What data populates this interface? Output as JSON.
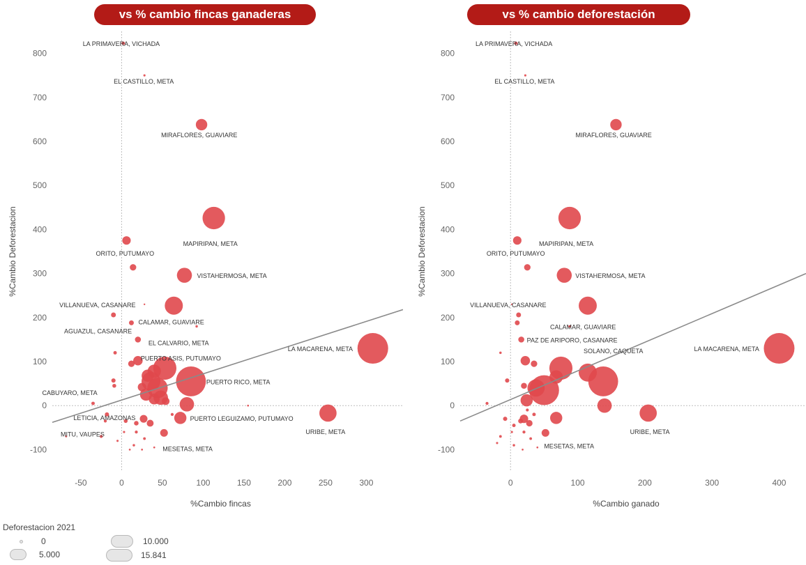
{
  "panels": {
    "left_title": "vs % cambio fincas ganaderas",
    "right_title": "vs % cambio deforestación"
  },
  "legend": {
    "title": "Deforestacion 2021",
    "entries": [
      {
        "label": "0",
        "value": 0
      },
      {
        "label": "5.000",
        "value": 5000
      },
      {
        "label": "10.000",
        "value": 10000
      },
      {
        "label": "15.841",
        "value": 15841
      }
    ]
  },
  "colors": {
    "marker": "#e0484d",
    "title_bg": "#b31b17",
    "trend": "#8a8a8a",
    "zero_line": "#bdbdbd"
  },
  "chart_data": [
    {
      "type": "scatter",
      "xlabel": "%Cambio fincas",
      "ylabel": "%Cambio Deforestacion",
      "xlim": [
        -85,
        345
      ],
      "ylim": [
        -150,
        850
      ],
      "xticks": [
        -50,
        0,
        50,
        100,
        150,
        200,
        250,
        300
      ],
      "yticks": [
        -100,
        0,
        100,
        200,
        300,
        400,
        500,
        600,
        700,
        800
      ],
      "trendline": [
        [
          -85,
          -38
        ],
        [
          345,
          218
        ]
      ],
      "points": [
        {
          "x": 2,
          "y": 823,
          "size": 200,
          "label": "LA PRIMAVERA, VICHADA"
        },
        {
          "x": 28,
          "y": 750,
          "size": 80,
          "label": "EL CASTILLO, META"
        },
        {
          "x": 98,
          "y": 638,
          "size": 2200,
          "label": "MIRAFLORES, GUAVIARE"
        },
        {
          "x": 113,
          "y": 426,
          "size": 8500,
          "label": "MAPIRIPAN, META"
        },
        {
          "x": 6,
          "y": 375,
          "size": 1200,
          "label": "ORITO, PUTUMAYO"
        },
        {
          "x": 14,
          "y": 314,
          "size": 700
        },
        {
          "x": 77,
          "y": 296,
          "size": 3800,
          "label": "VISTAHERMOSA, META"
        },
        {
          "x": 28,
          "y": 230,
          "size": 40,
          "label": "VILLANUEVA, CASANARE"
        },
        {
          "x": 64,
          "y": 227,
          "size": 5500
        },
        {
          "x": -10,
          "y": 206,
          "size": 400
        },
        {
          "x": 12,
          "y": 188,
          "size": 400,
          "label": "CALAMAR, GUAVIARE"
        },
        {
          "x": 92,
          "y": 180,
          "size": 100,
          "label": "AGUAZUL, CASANARE"
        },
        {
          "x": 20,
          "y": 150,
          "size": 600,
          "label": "EL CALVARIO, META"
        },
        {
          "x": 308,
          "y": 130,
          "size": 15841,
          "label": "LA MACARENA, META"
        },
        {
          "x": -8,
          "y": 120,
          "size": 200
        },
        {
          "x": 20,
          "y": 102,
          "size": 1500,
          "label": "PUERTO ASIS, PUTUMAYO"
        },
        {
          "x": 12,
          "y": 95,
          "size": 700
        },
        {
          "x": 53,
          "y": 85,
          "size": 9000
        },
        {
          "x": 40,
          "y": 78,
          "size": 3000
        },
        {
          "x": 32,
          "y": 68,
          "size": 2500
        },
        {
          "x": 85,
          "y": 55,
          "size": 15000,
          "label": "PUERTO RICO, META"
        },
        {
          "x": 36,
          "y": 55,
          "size": 6000
        },
        {
          "x": -10,
          "y": 57,
          "size": 300
        },
        {
          "x": -9,
          "y": 45,
          "size": 250
        },
        {
          "x": 44,
          "y": 40,
          "size": 7000
        },
        {
          "x": 25,
          "y": 42,
          "size": 1200
        },
        {
          "x": 30,
          "y": 25,
          "size": 2500
        },
        {
          "x": 48,
          "y": 18,
          "size": 3500
        },
        {
          "x": 40,
          "y": 15,
          "size": 2000
        },
        {
          "x": 54,
          "y": 10,
          "size": 1000
        },
        {
          "x": -35,
          "y": 5,
          "size": 200,
          "label": "CABUYARO, META"
        },
        {
          "x": 80,
          "y": 3,
          "size": 3500
        },
        {
          "x": 155,
          "y": 0,
          "size": 60
        },
        {
          "x": 253,
          "y": -17,
          "size": 5000,
          "label": "URIBE, META"
        },
        {
          "x": -18,
          "y": -20,
          "size": 300,
          "label": "LETICIA, AMAZONAS"
        },
        {
          "x": 72,
          "y": -28,
          "size": 2500,
          "label": "PUERTO LEGUIZAMO, PUTUMAYO"
        },
        {
          "x": 27,
          "y": -30,
          "size": 1000
        },
        {
          "x": 35,
          "y": -40,
          "size": 800
        },
        {
          "x": 18,
          "y": -40,
          "size": 350
        },
        {
          "x": 5,
          "y": -35,
          "size": 250
        },
        {
          "x": 52,
          "y": -62,
          "size": 1000,
          "label": "MESETAS, META"
        },
        {
          "x": -20,
          "y": -35,
          "size": 150,
          "label": "MITU, VAUPES"
        },
        {
          "x": -25,
          "y": -70,
          "size": 150
        },
        {
          "x": 18,
          "y": -60,
          "size": 150
        },
        {
          "x": 28,
          "y": -75,
          "size": 120
        },
        {
          "x": 15,
          "y": -90,
          "size": 100
        },
        {
          "x": 10,
          "y": -100,
          "size": 60
        },
        {
          "x": 25,
          "y": -100,
          "size": 60
        },
        {
          "x": 40,
          "y": -95,
          "size": 60
        },
        {
          "x": -5,
          "y": -80,
          "size": 80
        },
        {
          "x": 3,
          "y": -60,
          "size": 80
        },
        {
          "x": -68,
          "y": -70,
          "size": 60
        },
        {
          "x": 62,
          "y": -20,
          "size": 150
        }
      ]
    },
    {
      "type": "scatter",
      "xlabel": "%Cambio ganado",
      "ylabel": "%Cambio Deforestacion",
      "xlim": [
        -75,
        440
      ],
      "ylim": [
        -150,
        850
      ],
      "xticks": [
        0,
        100,
        200,
        300,
        400
      ],
      "yticks": [
        -100,
        0,
        100,
        200,
        300,
        400,
        500,
        600,
        700,
        800
      ],
      "trendline": [
        [
          -75,
          -35
        ],
        [
          440,
          300
        ]
      ],
      "points": [
        {
          "x": 8,
          "y": 823,
          "size": 200,
          "label": "LA PRIMAVERA, VICHADA"
        },
        {
          "x": 22,
          "y": 750,
          "size": 80,
          "label": "EL CASTILLO, META"
        },
        {
          "x": 157,
          "y": 638,
          "size": 2200,
          "label": "MIRAFLORES, GUAVIARE"
        },
        {
          "x": 88,
          "y": 426,
          "size": 8500,
          "label": "MAPIRIPAN, META"
        },
        {
          "x": 10,
          "y": 375,
          "size": 1200,
          "label": "ORITO, PUTUMAYO"
        },
        {
          "x": 25,
          "y": 314,
          "size": 700
        },
        {
          "x": 80,
          "y": 296,
          "size": 3800,
          "label": "VISTAHERMOSA, META"
        },
        {
          "x": 2,
          "y": 230,
          "size": 40,
          "label": "VILLANUEVA, CASANARE"
        },
        {
          "x": 115,
          "y": 227,
          "size": 5500
        },
        {
          "x": 12,
          "y": 206,
          "size": 400
        },
        {
          "x": 10,
          "y": 188,
          "size": 400
        },
        {
          "x": 88,
          "y": 180,
          "size": 100,
          "label": "CALAMAR, GUAVIARE"
        },
        {
          "x": 16,
          "y": 150,
          "size": 600,
          "label": "PAZ DE ARIPORO, CASANARE"
        },
        {
          "x": 400,
          "y": 130,
          "size": 15841,
          "label": "LA MACARENA, META"
        },
        {
          "x": -15,
          "y": 120,
          "size": 100
        },
        {
          "x": 22,
          "y": 102,
          "size": 1500
        },
        {
          "x": 35,
          "y": 95,
          "size": 700
        },
        {
          "x": 75,
          "y": 85,
          "size": 9000
        },
        {
          "x": 115,
          "y": 75,
          "size": 5500,
          "label": "SOLANO, CAQUETA"
        },
        {
          "x": 68,
          "y": 65,
          "size": 3000
        },
        {
          "x": 138,
          "y": 55,
          "size": 15000
        },
        {
          "x": -5,
          "y": 57,
          "size": 300
        },
        {
          "x": 20,
          "y": 45,
          "size": 600
        },
        {
          "x": 50,
          "y": 35,
          "size": 15000
        },
        {
          "x": 38,
          "y": 40,
          "size": 5000
        },
        {
          "x": 24,
          "y": 12,
          "size": 2500
        },
        {
          "x": 140,
          "y": 0,
          "size": 3500
        },
        {
          "x": -35,
          "y": 5,
          "size": 150
        },
        {
          "x": 205,
          "y": -17,
          "size": 5000,
          "label": "URIBE, META"
        },
        {
          "x": 68,
          "y": -28,
          "size": 2500
        },
        {
          "x": 20,
          "y": -30,
          "size": 1200
        },
        {
          "x": 28,
          "y": -40,
          "size": 700
        },
        {
          "x": 15,
          "y": -35,
          "size": 400
        },
        {
          "x": -8,
          "y": -30,
          "size": 300
        },
        {
          "x": 52,
          "y": -62,
          "size": 1000,
          "label": "MESETAS, META"
        },
        {
          "x": 5,
          "y": -45,
          "size": 200
        },
        {
          "x": -15,
          "y": -70,
          "size": 120
        },
        {
          "x": 20,
          "y": -60,
          "size": 150
        },
        {
          "x": 30,
          "y": -75,
          "size": 120
        },
        {
          "x": 5,
          "y": -90,
          "size": 100
        },
        {
          "x": 18,
          "y": -100,
          "size": 60
        },
        {
          "x": 40,
          "y": -95,
          "size": 60
        },
        {
          "x": -20,
          "y": -85,
          "size": 80
        },
        {
          "x": 2,
          "y": -60,
          "size": 80
        },
        {
          "x": 35,
          "y": -20,
          "size": 200
        },
        {
          "x": 25,
          "y": -10,
          "size": 150
        }
      ]
    }
  ]
}
